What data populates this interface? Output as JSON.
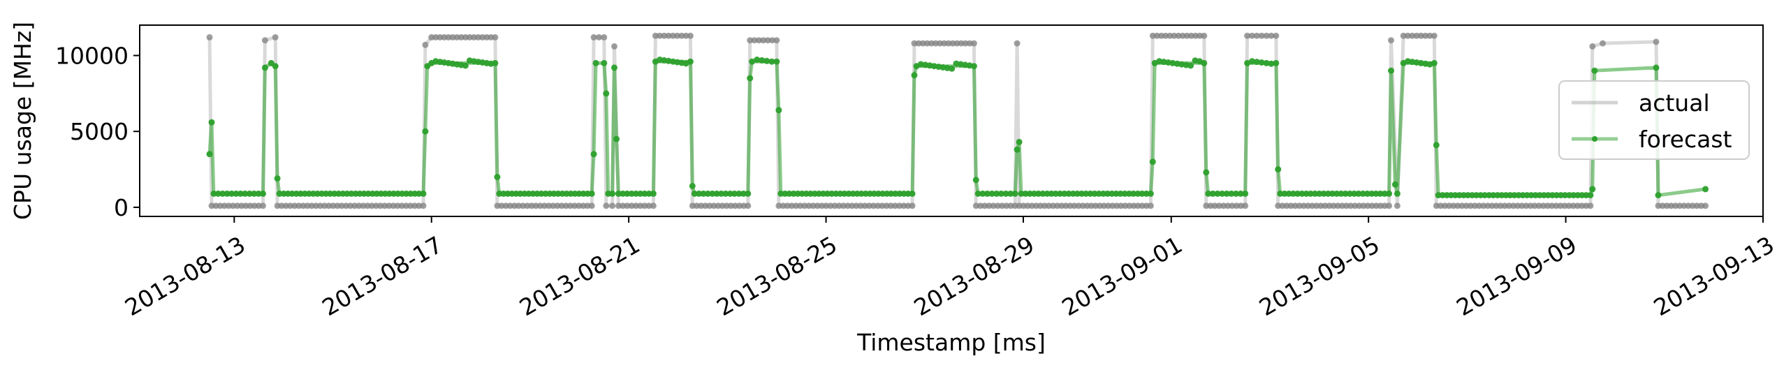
{
  "chart_data": {
    "type": "line",
    "xlabel": "Timestamp [ms]",
    "ylabel": "CPU usage [MHz]",
    "x_range": [
      "2013-08-11T02:00",
      "2013-09-13T00:00"
    ],
    "ylim": [
      -600,
      12000
    ],
    "x_ticks": [
      "2013-08-13",
      "2013-08-17",
      "2013-08-21",
      "2013-08-25",
      "2013-08-29",
      "2013-09-01",
      "2013-09-05",
      "2013-09-09",
      "2013-09-13"
    ],
    "y_ticks": [
      0,
      5000,
      10000
    ],
    "grid": false,
    "legend": "center-right",
    "colors": {
      "actual": "#808080",
      "forecast": "#2ca02c"
    },
    "series": [
      {
        "name": "actual",
        "style": "line-with-markers",
        "points": [
          [
            "2013-08-12T12:00",
            11200
          ],
          [
            "2013-08-12T13:00",
            100
          ],
          [
            "2013-08-13T14:00",
            100
          ],
          [
            "2013-08-13T15:00",
            11000
          ],
          [
            "2013-08-13T20:00",
            11200
          ],
          [
            "2013-08-13T21:00",
            100
          ],
          [
            "2013-08-16T20:00",
            100
          ],
          [
            "2013-08-16T21:00",
            10700
          ],
          [
            "2013-08-17T00:00",
            11200
          ],
          [
            "2013-08-18T07:00",
            11200
          ],
          [
            "2013-08-18T08:00",
            100
          ],
          [
            "2013-08-20T06:00",
            100
          ],
          [
            "2013-08-20T07:00",
            11200
          ],
          [
            "2013-08-20T12:00",
            11200
          ],
          [
            "2013-08-20T13:00",
            100
          ],
          [
            "2013-08-20T16:00",
            100
          ],
          [
            "2013-08-20T17:00",
            10600
          ],
          [
            "2013-08-20T19:00",
            100
          ],
          [
            "2013-08-21T12:00",
            100
          ],
          [
            "2013-08-21T13:00",
            11300
          ],
          [
            "2013-08-22T06:00",
            11300
          ],
          [
            "2013-08-22T07:00",
            100
          ],
          [
            "2013-08-23T10:00",
            100
          ],
          [
            "2013-08-23T11:00",
            11000
          ],
          [
            "2013-08-24T00:00",
            11000
          ],
          [
            "2013-08-24T01:00",
            100
          ],
          [
            "2013-08-26T18:00",
            100
          ],
          [
            "2013-08-26T19:00",
            10800
          ],
          [
            "2013-08-28T00:00",
            10800
          ],
          [
            "2013-08-28T01:00",
            100
          ],
          [
            "2013-08-28T20:00",
            100
          ],
          [
            "2013-08-28T21:00",
            10800
          ],
          [
            "2013-08-28T22:00",
            100
          ],
          [
            "2013-08-31T14:00",
            100
          ],
          [
            "2013-08-31T15:00",
            11300
          ],
          [
            "2013-09-01T16:00",
            11300
          ],
          [
            "2013-09-01T17:00",
            100
          ],
          [
            "2013-09-02T12:00",
            100
          ],
          [
            "2013-09-02T13:00",
            11300
          ],
          [
            "2013-09-03T03:00",
            11300
          ],
          [
            "2013-09-03T04:00",
            100
          ],
          [
            "2013-09-05T10:00",
            100
          ],
          [
            "2013-09-05T11:00",
            11000
          ],
          [
            "2013-09-05T14:00",
            100
          ],
          [
            "2013-09-05T17:00",
            11300
          ],
          [
            "2013-09-06T08:00",
            11300
          ],
          [
            "2013-09-06T09:00",
            100
          ],
          [
            "2013-09-09T12:00",
            100
          ],
          [
            "2013-09-09T13:00",
            10600
          ],
          [
            "2013-09-09T18:00",
            10800
          ],
          [
            "2013-09-10T20:00",
            10900
          ],
          [
            "2013-09-10T21:00",
            100
          ],
          [
            "2013-09-11T20:00",
            100
          ]
        ]
      },
      {
        "name": "forecast",
        "style": "line-with-markers",
        "points": [
          [
            "2013-08-12T12:00",
            3500
          ],
          [
            "2013-08-12T13:00",
            5600
          ],
          [
            "2013-08-12T14:00",
            900
          ],
          [
            "2013-08-13T14:00",
            900
          ],
          [
            "2013-08-13T15:00",
            9200
          ],
          [
            "2013-08-13T18:00",
            9500
          ],
          [
            "2013-08-13T20:00",
            9300
          ],
          [
            "2013-08-13T21:00",
            1900
          ],
          [
            "2013-08-13T22:00",
            900
          ],
          [
            "2013-08-16T20:00",
            900
          ],
          [
            "2013-08-16T21:00",
            5000
          ],
          [
            "2013-08-16T22:00",
            9300
          ],
          [
            "2013-08-17T00:00",
            9500
          ],
          [
            "2013-08-18T07:00",
            9500
          ],
          [
            "2013-08-18T08:00",
            2000
          ],
          [
            "2013-08-18T09:00",
            900
          ],
          [
            "2013-08-20T06:00",
            900
          ],
          [
            "2013-08-20T07:00",
            3500
          ],
          [
            "2013-08-20T08:00",
            9500
          ],
          [
            "2013-08-20T12:00",
            9500
          ],
          [
            "2013-08-20T13:00",
            7500
          ],
          [
            "2013-08-20T14:00",
            900
          ],
          [
            "2013-08-20T16:00",
            900
          ],
          [
            "2013-08-20T17:00",
            9200
          ],
          [
            "2013-08-20T18:00",
            4500
          ],
          [
            "2013-08-20T19:00",
            900
          ],
          [
            "2013-08-21T12:00",
            900
          ],
          [
            "2013-08-21T13:00",
            9600
          ],
          [
            "2013-08-22T06:00",
            9600
          ],
          [
            "2013-08-22T07:00",
            1400
          ],
          [
            "2013-08-22T08:00",
            900
          ],
          [
            "2013-08-23T10:00",
            900
          ],
          [
            "2013-08-23T11:00",
            8500
          ],
          [
            "2013-08-23T12:00",
            9600
          ],
          [
            "2013-08-24T00:00",
            9600
          ],
          [
            "2013-08-24T01:00",
            6400
          ],
          [
            "2013-08-24T02:00",
            900
          ],
          [
            "2013-08-26T18:00",
            900
          ],
          [
            "2013-08-26T19:00",
            8700
          ],
          [
            "2013-08-26T20:00",
            9300
          ],
          [
            "2013-08-28T00:00",
            9300
          ],
          [
            "2013-08-28T01:00",
            1800
          ],
          [
            "2013-08-28T02:00",
            900
          ],
          [
            "2013-08-28T20:00",
            900
          ],
          [
            "2013-08-28T21:00",
            3800
          ],
          [
            "2013-08-28T22:00",
            4300
          ],
          [
            "2013-08-28T23:00",
            900
          ],
          [
            "2013-08-31T14:00",
            900
          ],
          [
            "2013-08-31T15:00",
            3000
          ],
          [
            "2013-08-31T16:00",
            9500
          ],
          [
            "2013-09-01T16:00",
            9500
          ],
          [
            "2013-09-01T17:00",
            2300
          ],
          [
            "2013-09-01T18:00",
            900
          ],
          [
            "2013-09-02T12:00",
            900
          ],
          [
            "2013-09-02T13:00",
            9500
          ],
          [
            "2013-09-03T03:00",
            9500
          ],
          [
            "2013-09-03T04:00",
            2500
          ],
          [
            "2013-09-03T05:00",
            900
          ],
          [
            "2013-09-05T10:00",
            900
          ],
          [
            "2013-09-05T11:00",
            9000
          ],
          [
            "2013-09-05T13:00",
            1500
          ],
          [
            "2013-09-05T14:00",
            900
          ],
          [
            "2013-09-05T17:00",
            9500
          ],
          [
            "2013-09-06T08:00",
            9500
          ],
          [
            "2013-09-06T09:00",
            4100
          ],
          [
            "2013-09-06T10:00",
            800
          ],
          [
            "2013-09-09T12:00",
            800
          ],
          [
            "2013-09-09T13:00",
            1200
          ],
          [
            "2013-09-09T14:00",
            9000
          ],
          [
            "2013-09-10T20:00",
            9200
          ],
          [
            "2013-09-10T21:00",
            800
          ],
          [
            "2013-09-11T20:00",
            1200
          ]
        ]
      }
    ]
  }
}
